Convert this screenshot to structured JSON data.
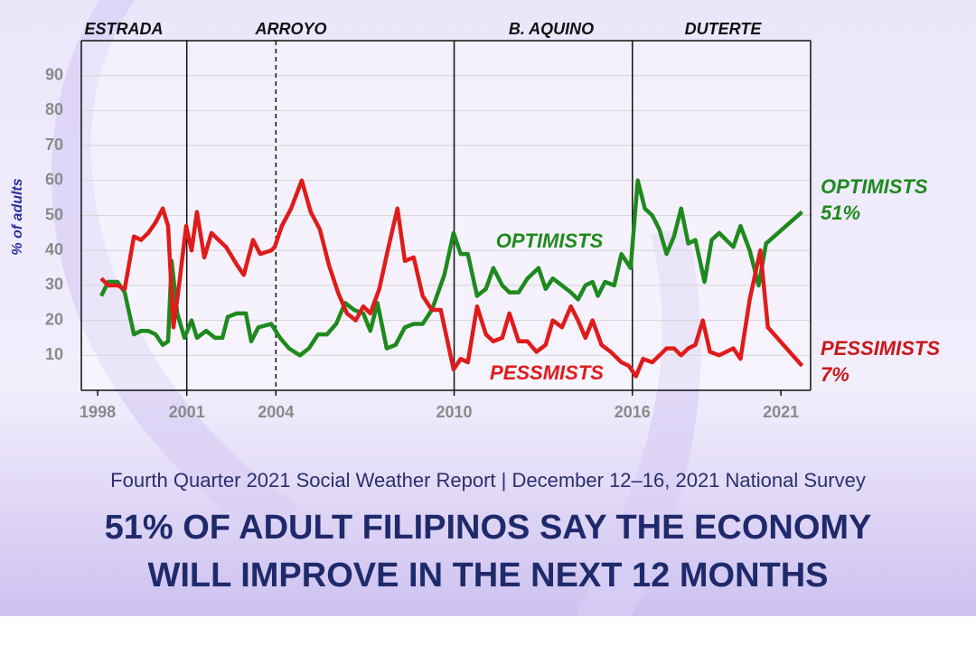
{
  "chart_data": {
    "type": "line",
    "y_label": "% of adults",
    "periods": [
      "ESTRADA",
      "ARROYO",
      "B. AQUINO",
      "DUTERTE"
    ],
    "dividers": [
      {
        "value": 2001,
        "style": "solid"
      },
      {
        "value": 2004,
        "style": "dashed"
      },
      {
        "value": 2010,
        "style": "solid"
      },
      {
        "value": 2016,
        "style": "solid"
      }
    ],
    "xlim": [
      1997.45,
      2022
    ],
    "xticks": [
      1998,
      2001,
      2004,
      2010,
      2016,
      2021
    ],
    "ylim": [
      0,
      100
    ],
    "yticks": [
      10,
      20,
      30,
      40,
      50,
      60,
      70,
      80,
      90
    ],
    "grid": true,
    "series": [
      {
        "name": "OPTIMISTS",
        "color": "#1e8a1e",
        "x": [
          1998.12,
          1998.36,
          1998.67,
          1998.91,
          1999.22,
          1999.46,
          1999.7,
          1999.95,
          2000.19,
          2000.37,
          2000.49,
          2000.68,
          2000.92,
          2001.16,
          2001.34,
          2001.65,
          2001.95,
          2002.2,
          2002.38,
          2002.68,
          2002.99,
          2003.17,
          2003.41,
          2003.84,
          2004.14,
          2004.44,
          2004.81,
          2005.11,
          2005.42,
          2005.72,
          2006.03,
          2006.33,
          2006.63,
          2006.94,
          2007.18,
          2007.42,
          2007.73,
          2008.03,
          2008.34,
          2008.64,
          2008.94,
          2009.25,
          2009.67,
          2009.98,
          2010.22,
          2010.46,
          2010.77,
          2011.07,
          2011.32,
          2011.62,
          2011.86,
          2012.17,
          2012.47,
          2012.84,
          2013.08,
          2013.32,
          2013.63,
          2013.93,
          2014.17,
          2014.42,
          2014.66,
          2014.84,
          2015.08,
          2015.39,
          2015.63,
          2015.94,
          2016.18,
          2016.42,
          2016.67,
          2016.91,
          2017.15,
          2017.4,
          2017.64,
          2017.88,
          2018.12,
          2018.43,
          2018.67,
          2018.92,
          2019.16,
          2019.4,
          2019.64,
          2019.95,
          2020.25,
          2020.5,
          2021.71
        ],
        "values": [
          27,
          31,
          31,
          28,
          16,
          17,
          17,
          16,
          13,
          14,
          37,
          22,
          15,
          20,
          15,
          17,
          15,
          15,
          21,
          22,
          22,
          14,
          18,
          19,
          15,
          12,
          10,
          12,
          16,
          16,
          19,
          25,
          23,
          22,
          17,
          25,
          12,
          13,
          18,
          19,
          19,
          23,
          33,
          45,
          39,
          39,
          27,
          29,
          35,
          30,
          28,
          28,
          32,
          35,
          29,
          32,
          30,
          28,
          26,
          30,
          31,
          27,
          31,
          30,
          39,
          35,
          60,
          52,
          50,
          46,
          39,
          44,
          52,
          42,
          43,
          31,
          43,
          45,
          43,
          41,
          47,
          40,
          30,
          42,
          51
        ]
      },
      {
        "name": "PESSIMISTS",
        "color": "#e01b1b",
        "x": [
          1998.12,
          1998.36,
          1998.67,
          1998.91,
          1999.22,
          1999.46,
          1999.7,
          1999.95,
          2000.19,
          2000.37,
          2000.55,
          2000.74,
          2000.98,
          2001.16,
          2001.34,
          2001.59,
          2001.83,
          2002.07,
          2002.32,
          2002.68,
          2002.92,
          2003.23,
          2003.47,
          2003.84,
          2003.96,
          2004.2,
          2004.51,
          2004.87,
          2005.17,
          2005.48,
          2005.78,
          2006.09,
          2006.39,
          2006.69,
          2006.94,
          2007.18,
          2007.48,
          2007.79,
          2008.09,
          2008.34,
          2008.64,
          2008.94,
          2009.25,
          2009.55,
          2009.98,
          2010.22,
          2010.46,
          2010.77,
          2011.07,
          2011.32,
          2011.62,
          2011.86,
          2012.17,
          2012.47,
          2012.77,
          2013.08,
          2013.32,
          2013.63,
          2013.93,
          2014.17,
          2014.42,
          2014.66,
          2014.96,
          2015.27,
          2015.63,
          2015.88,
          2016.12,
          2016.36,
          2016.67,
          2016.91,
          2017.15,
          2017.4,
          2017.64,
          2017.88,
          2018.12,
          2018.37,
          2018.61,
          2018.92,
          2019.16,
          2019.4,
          2019.64,
          2019.95,
          2020.31,
          2020.56,
          2021.71
        ],
        "values": [
          32,
          30,
          30,
          29,
          44,
          43,
          45,
          48,
          52,
          47,
          18,
          30,
          47,
          40,
          51,
          38,
          45,
          43,
          41,
          36,
          33,
          43,
          39,
          40,
          41,
          47,
          52,
          60,
          51,
          46,
          36,
          28,
          22,
          20,
          24,
          22,
          29,
          41,
          52,
          37,
          38,
          27,
          23,
          23,
          6,
          9,
          8,
          24,
          16,
          14,
          15,
          22,
          14,
          14,
          11,
          13,
          20,
          18,
          24,
          20,
          15,
          20,
          13,
          11,
          8,
          7,
          4,
          9,
          8,
          10,
          12,
          12,
          10,
          12,
          13,
          20,
          11,
          10,
          11,
          12,
          9,
          26,
          40,
          18,
          7
        ]
      }
    ],
    "annotations": [
      "OPTIMISTS",
      "PESSMISTS",
      "OPTIMISTS",
      "51%",
      "PESSIMISTS",
      "7%"
    ],
    "subtitle": "Fourth Quarter 2021 Social Weather Report | December 12–16, 2021 National Survey",
    "headline": [
      "51% OF ADULT FILIPINOS SAY THE ECONOMY",
      "WILL IMPROVE IN THE NEXT 12 MONTHS"
    ]
  }
}
